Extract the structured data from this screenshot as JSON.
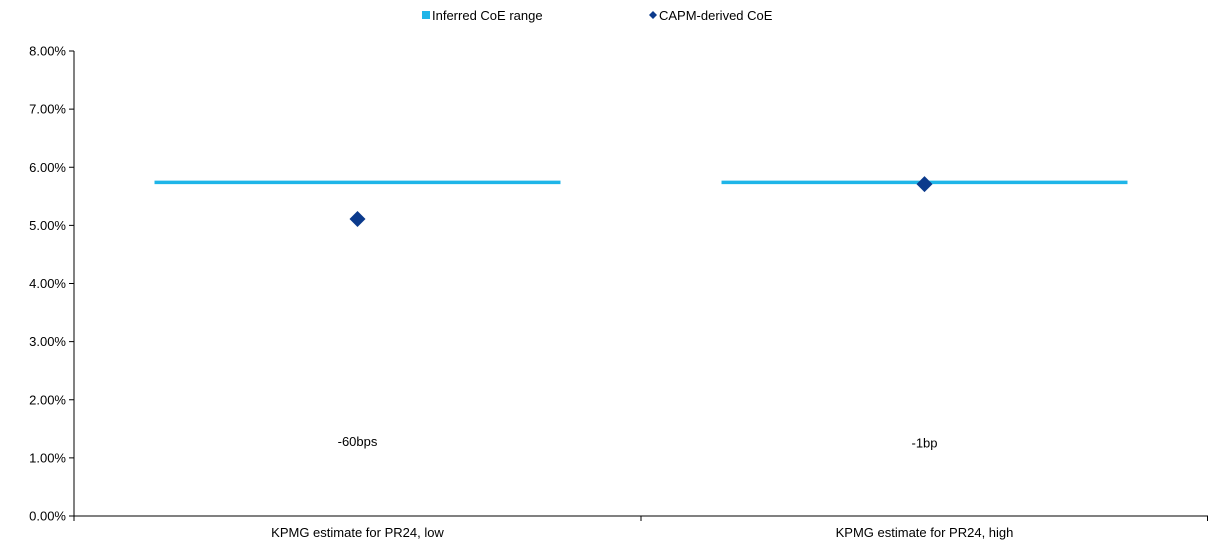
{
  "chart_data": {
    "type": "scatter",
    "title": "",
    "xlabel": "",
    "ylabel": "",
    "categories": [
      "KPMG estimate for PR24, low",
      "KPMG estimate for PR24, high"
    ],
    "ylim": [
      0,
      0.08
    ],
    "yticks": [
      "0.00%",
      "1.00%",
      "2.00%",
      "3.00%",
      "4.00%",
      "5.00%",
      "6.00%",
      "7.00%",
      "8.00%"
    ],
    "grid": false,
    "legend_position": "top-center",
    "legend": [
      {
        "label": "Inferred CoE range",
        "marker": "square",
        "color": "#1fb5e8"
      },
      {
        "label": "CAPM-derived CoE",
        "marker": "diamond",
        "color": "#0b3a8c"
      }
    ],
    "series": [
      {
        "name": "Inferred CoE range",
        "kind": "range-bar",
        "color": "#1fb5e8",
        "values": [
          0.0574,
          0.0574
        ]
      },
      {
        "name": "CAPM-derived CoE",
        "kind": "marker",
        "color": "#0b3a8c",
        "values": [
          0.0511,
          0.0571
        ]
      }
    ],
    "annotations": [
      "-60bps",
      "-1bp"
    ],
    "annotation_values": [
      0.0128,
      0.0126
    ]
  }
}
